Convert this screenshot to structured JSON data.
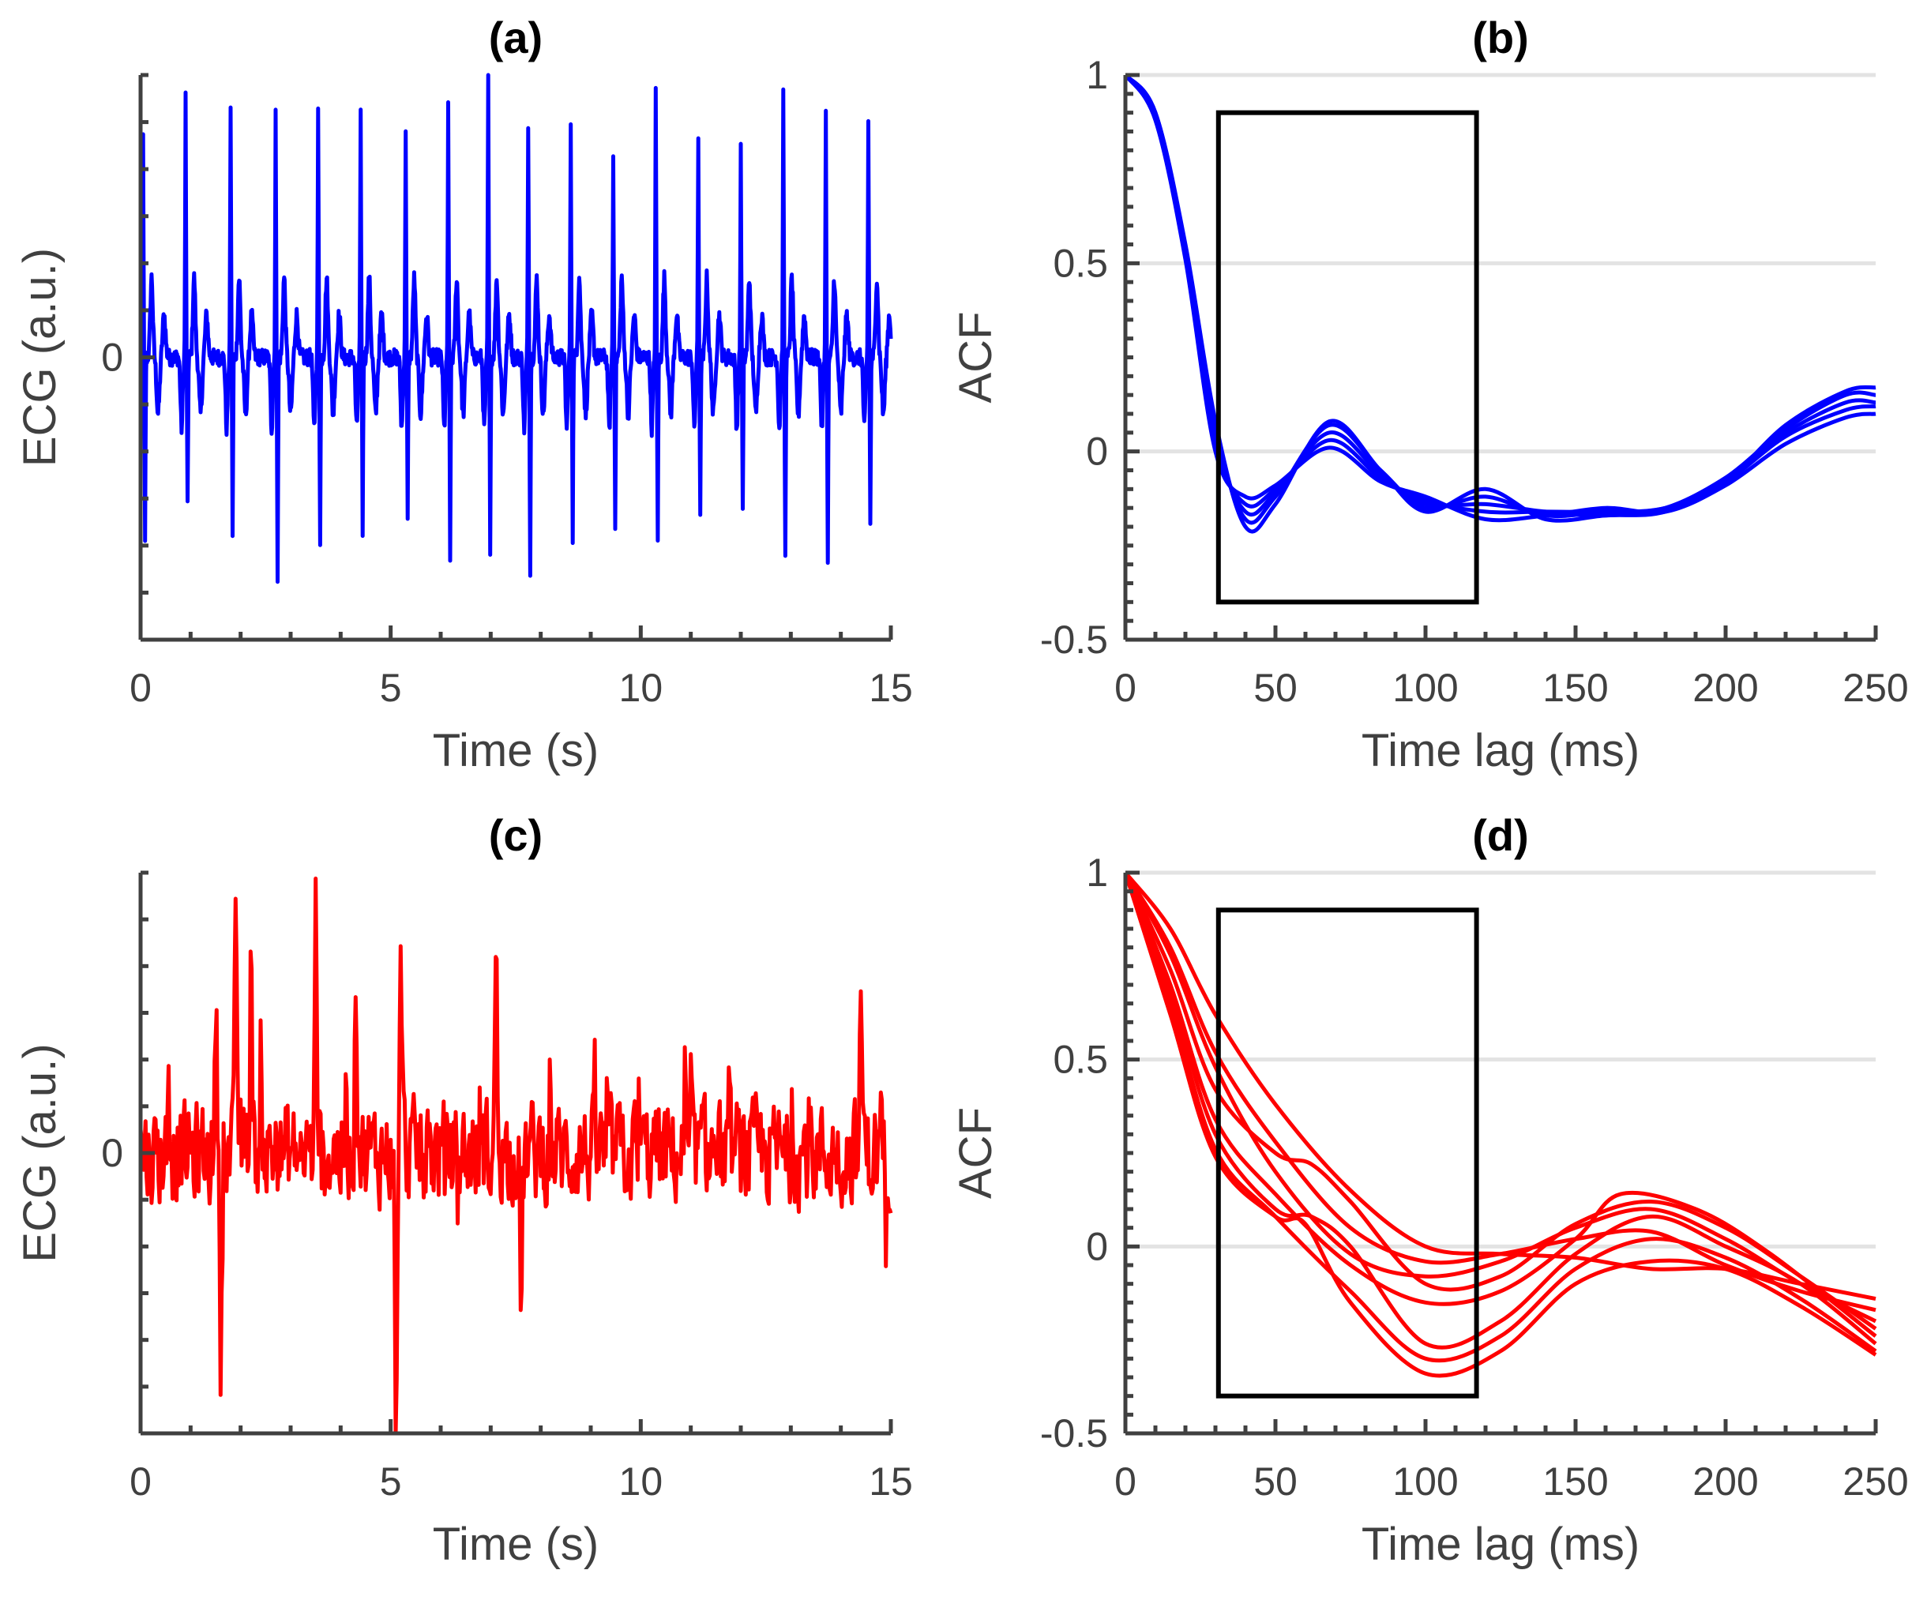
{
  "chart_data": [
    {
      "id": "a",
      "type": "line",
      "title": "(a)",
      "xlabel": "Time (s)",
      "ylabel": "ECG (a.u.)",
      "xlim": [
        0,
        15
      ],
      "ylim": [
        -1,
        1
      ],
      "x_ticks": [
        0,
        5,
        10,
        15
      ],
      "x_tick_labels": [
        "0",
        "5",
        "10",
        "15"
      ],
      "y_ticks": [
        0
      ],
      "y_tick_labels": [
        "0"
      ],
      "grid": false,
      "color": "#0000ff",
      "signal": {
        "beat_times": [
          0.05,
          0.9,
          1.8,
          2.7,
          3.55,
          4.4,
          5.3,
          6.15,
          6.95,
          7.75,
          8.6,
          9.45,
          10.3,
          11.15,
          12.0,
          12.85,
          13.7,
          14.55
        ],
        "peak_values": [
          0.78,
          0.92,
          0.9,
          0.87,
          0.86,
          0.85,
          0.82,
          0.88,
          0.98,
          0.84,
          0.8,
          0.72,
          0.93,
          0.78,
          0.75,
          0.92,
          0.86,
          0.84
        ],
        "trough_values": [
          -0.67,
          -0.54,
          -0.62,
          -0.78,
          -0.64,
          -0.62,
          -0.58,
          -0.7,
          -0.67,
          -0.75,
          -0.63,
          -0.58,
          -0.63,
          -0.58,
          -0.55,
          -0.72,
          -0.74,
          -0.6
        ],
        "duration": 15
      }
    },
    {
      "id": "b",
      "type": "line",
      "title": "(b)",
      "xlabel": "Time lag (ms)",
      "ylabel": "ACF",
      "xlim": [
        0,
        250
      ],
      "ylim": [
        -0.5,
        1
      ],
      "x_ticks": [
        0,
        50,
        100,
        150,
        200,
        250
      ],
      "x_tick_labels": [
        "0",
        "50",
        "100",
        "150",
        "200",
        "250"
      ],
      "y_ticks": [
        -0.5,
        0,
        0.5,
        1
      ],
      "y_tick_labels": [
        "-0.5",
        "0",
        "0.5",
        "1"
      ],
      "grid": true,
      "color": "#0000ff",
      "window": {
        "x": [
          31,
          117
        ],
        "y": [
          -0.4,
          0.9
        ]
      },
      "series": [
        {
          "name": "ACF 1",
          "points": [
            [
              0,
              1
            ],
            [
              10,
              0.9
            ],
            [
              20,
              0.55
            ],
            [
              30,
              0.08
            ],
            [
              40,
              -0.2
            ],
            [
              50,
              -0.14
            ],
            [
              68,
              0.08
            ],
            [
              85,
              -0.05
            ],
            [
              100,
              -0.16
            ],
            [
              120,
              -0.1
            ],
            [
              140,
              -0.18
            ],
            [
              160,
              -0.17
            ],
            [
              180,
              -0.16
            ],
            [
              200,
              -0.08
            ],
            [
              220,
              0.07
            ],
            [
              240,
              0.16
            ],
            [
              250,
              0.17
            ]
          ]
        },
        {
          "name": "ACF 2",
          "points": [
            [
              0,
              1
            ],
            [
              10,
              0.9
            ],
            [
              20,
              0.54
            ],
            [
              30,
              0.06
            ],
            [
              40,
              -0.18
            ],
            [
              50,
              -0.12
            ],
            [
              68,
              0.07
            ],
            [
              85,
              -0.05
            ],
            [
              100,
              -0.15
            ],
            [
              120,
              -0.12
            ],
            [
              140,
              -0.17
            ],
            [
              160,
              -0.16
            ],
            [
              180,
              -0.15
            ],
            [
              200,
              -0.07
            ],
            [
              220,
              0.06
            ],
            [
              240,
              0.15
            ],
            [
              250,
              0.15
            ]
          ]
        },
        {
          "name": "ACF 3",
          "points": [
            [
              0,
              1
            ],
            [
              10,
              0.89
            ],
            [
              20,
              0.53
            ],
            [
              30,
              0.04
            ],
            [
              40,
              -0.16
            ],
            [
              50,
              -0.11
            ],
            [
              68,
              0.05
            ],
            [
              85,
              -0.06
            ],
            [
              100,
              -0.14
            ],
            [
              120,
              -0.14
            ],
            [
              140,
              -0.16
            ],
            [
              160,
              -0.17
            ],
            [
              180,
              -0.15
            ],
            [
              200,
              -0.07
            ],
            [
              220,
              0.05
            ],
            [
              240,
              0.13
            ],
            [
              250,
              0.13
            ]
          ]
        },
        {
          "name": "ACF 4",
          "points": [
            [
              0,
              1
            ],
            [
              10,
              0.89
            ],
            [
              20,
              0.52
            ],
            [
              30,
              0.02
            ],
            [
              40,
              -0.14
            ],
            [
              50,
              -0.1
            ],
            [
              68,
              0.03
            ],
            [
              85,
              -0.07
            ],
            [
              100,
              -0.13
            ],
            [
              120,
              -0.16
            ],
            [
              140,
              -0.16
            ],
            [
              160,
              -0.16
            ],
            [
              180,
              -0.15
            ],
            [
              200,
              -0.08
            ],
            [
              220,
              0.04
            ],
            [
              240,
              0.11
            ],
            [
              250,
              0.12
            ]
          ]
        },
        {
          "name": "ACF 5",
          "points": [
            [
              0,
              1
            ],
            [
              10,
              0.88
            ],
            [
              20,
              0.51
            ],
            [
              30,
              0.0
            ],
            [
              40,
              -0.12
            ],
            [
              50,
              -0.09
            ],
            [
              68,
              0.01
            ],
            [
              85,
              -0.08
            ],
            [
              100,
              -0.12
            ],
            [
              120,
              -0.18
            ],
            [
              140,
              -0.17
            ],
            [
              160,
              -0.15
            ],
            [
              180,
              -0.16
            ],
            [
              200,
              -0.09
            ],
            [
              220,
              0.02
            ],
            [
              240,
              0.09
            ],
            [
              250,
              0.1
            ]
          ]
        }
      ]
    },
    {
      "id": "c",
      "type": "line",
      "title": "(c)",
      "xlabel": "Time (s)",
      "ylabel": "ECG (a.u.)",
      "xlim": [
        0,
        15
      ],
      "ylim": [
        -1,
        1
      ],
      "x_ticks": [
        0,
        5,
        10,
        15
      ],
      "x_tick_labels": [
        "0",
        "5",
        "10",
        "15"
      ],
      "y_ticks": [
        0
      ],
      "y_tick_labels": [
        "0"
      ],
      "grid": false,
      "color": "#ff0000",
      "signal": {
        "spikes": [
          [
            1.9,
            0.76
          ],
          [
            5.1,
            -0.9
          ],
          [
            4.3,
            0.55
          ],
          [
            5.2,
            0.63
          ],
          [
            7.1,
            0.6
          ],
          [
            7.6,
            -0.46
          ],
          [
            1.6,
            -0.58
          ],
          [
            1.5,
            0.42
          ],
          [
            14.4,
            0.46
          ],
          [
            2.2,
            0.55
          ],
          [
            3.5,
            0.62
          ],
          [
            14.9,
            -0.3
          ]
        ],
        "duration": 15
      }
    },
    {
      "id": "d",
      "type": "line",
      "title": "(d)",
      "xlabel": "Time lag (ms)",
      "ylabel": "ACF",
      "xlim": [
        0,
        250
      ],
      "ylim": [
        -0.5,
        1
      ],
      "x_ticks": [
        0,
        50,
        100,
        150,
        200,
        250
      ],
      "x_tick_labels": [
        "0",
        "50",
        "100",
        "150",
        "200",
        "250"
      ],
      "y_ticks": [
        -0.5,
        0,
        0.5,
        1
      ],
      "y_tick_labels": [
        "-0.5",
        "0",
        "0.5",
        "1"
      ],
      "grid": true,
      "color": "#ff0000",
      "window": {
        "x": [
          31,
          117
        ],
        "y": [
          -0.4,
          0.9
        ]
      },
      "series": [
        {
          "name": "ACF 1",
          "points": [
            [
              0,
              1
            ],
            [
              15,
              0.85
            ],
            [
              30,
              0.62
            ],
            [
              50,
              0.38
            ],
            [
              75,
              0.15
            ],
            [
              100,
              0.0
            ],
            [
              125,
              -0.02
            ],
            [
              150,
              -0.03
            ],
            [
              175,
              -0.06
            ],
            [
              200,
              -0.06
            ],
            [
              225,
              -0.1
            ],
            [
              250,
              -0.14
            ]
          ]
        },
        {
          "name": "ACF 2",
          "points": [
            [
              0,
              1
            ],
            [
              15,
              0.8
            ],
            [
              30,
              0.52
            ],
            [
              50,
              0.28
            ],
            [
              75,
              0.05
            ],
            [
              100,
              -0.04
            ],
            [
              125,
              -0.02
            ],
            [
              150,
              0.02
            ],
            [
              175,
              0.04
            ],
            [
              200,
              -0.05
            ],
            [
              225,
              -0.12
            ],
            [
              250,
              -0.17
            ]
          ]
        },
        {
          "name": "ACF 3",
          "points": [
            [
              0,
              1
            ],
            [
              15,
              0.78
            ],
            [
              30,
              0.48
            ],
            [
              50,
              0.2
            ],
            [
              75,
              -0.02
            ],
            [
              100,
              -0.08
            ],
            [
              125,
              -0.04
            ],
            [
              150,
              0.05
            ],
            [
              175,
              0.1
            ],
            [
              200,
              0.02
            ],
            [
              225,
              -0.1
            ],
            [
              250,
              -0.2
            ]
          ]
        },
        {
          "name": "ACF 4",
          "points": [
            [
              0,
              1
            ],
            [
              15,
              0.74
            ],
            [
              30,
              0.42
            ],
            [
              50,
              0.25
            ],
            [
              62,
              0.22
            ],
            [
              75,
              0.12
            ],
            [
              100,
              -0.1
            ],
            [
              125,
              -0.08
            ],
            [
              150,
              0.06
            ],
            [
              175,
              0.12
            ],
            [
              200,
              0.05
            ],
            [
              225,
              -0.08
            ],
            [
              250,
              -0.22
            ]
          ]
        },
        {
          "name": "ACF 5",
          "points": [
            [
              0,
              1
            ],
            [
              15,
              0.7
            ],
            [
              30,
              0.34
            ],
            [
              50,
              0.14
            ],
            [
              75,
              -0.05
            ],
            [
              100,
              -0.15
            ],
            [
              125,
              -0.12
            ],
            [
              150,
              0.02
            ],
            [
              165,
              0.14
            ],
            [
              190,
              0.1
            ],
            [
              215,
              -0.02
            ],
            [
              250,
              -0.24
            ]
          ]
        },
        {
          "name": "ACF 6",
          "points": [
            [
              0,
              1
            ],
            [
              15,
              0.68
            ],
            [
              30,
              0.3
            ],
            [
              50,
              0.1
            ],
            [
              62,
              0.08
            ],
            [
              75,
              0.0
            ],
            [
              100,
              -0.26
            ],
            [
              125,
              -0.2
            ],
            [
              150,
              -0.02
            ],
            [
              175,
              0.08
            ],
            [
              200,
              0.0
            ],
            [
              225,
              -0.1
            ],
            [
              250,
              -0.26
            ]
          ]
        },
        {
          "name": "ACF 7",
          "points": [
            [
              0,
              1
            ],
            [
              15,
              0.65
            ],
            [
              30,
              0.26
            ],
            [
              50,
              0.08
            ],
            [
              75,
              -0.12
            ],
            [
              100,
              -0.3
            ],
            [
              125,
              -0.24
            ],
            [
              150,
              -0.06
            ],
            [
              175,
              0.02
            ],
            [
              200,
              -0.03
            ],
            [
              225,
              -0.14
            ],
            [
              250,
              -0.28
            ]
          ]
        },
        {
          "name": "ACF 8",
          "points": [
            [
              0,
              1
            ],
            [
              15,
              0.62
            ],
            [
              30,
              0.24
            ],
            [
              50,
              0.08
            ],
            [
              60,
              0.06
            ],
            [
              75,
              -0.15
            ],
            [
              100,
              -0.34
            ],
            [
              125,
              -0.28
            ],
            [
              150,
              -0.1
            ],
            [
              175,
              -0.04
            ],
            [
              200,
              -0.06
            ],
            [
              225,
              -0.16
            ],
            [
              250,
              -0.29
            ]
          ]
        }
      ]
    }
  ]
}
